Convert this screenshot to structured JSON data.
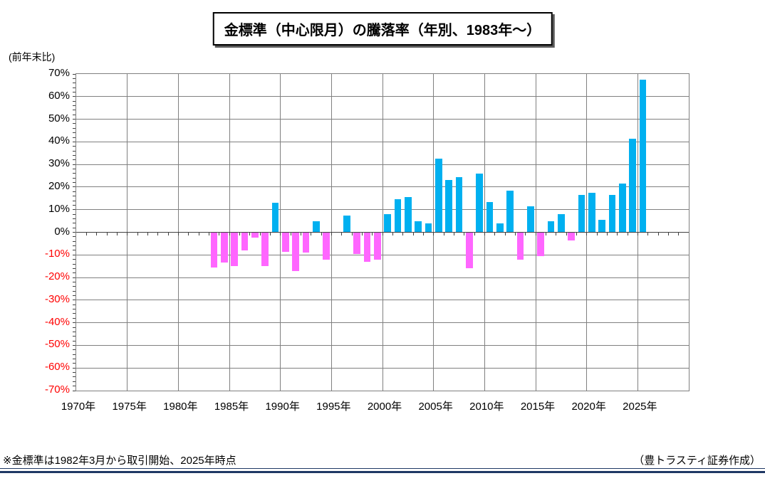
{
  "title": "金標準（中心限月）の騰落率（年別、1983年〜）",
  "axis_unit": "(前年末比)",
  "footnote": "※金標準は1982年3月から取引開始、2025年時点",
  "credit": "（豊トラスティ証券作成）",
  "colors": {
    "positive_bar": "#00B0F0",
    "negative_bar": "#FF66FF",
    "negative_tick_label": "#FF0000",
    "positive_tick_label": "#000000",
    "gridline": "#808080",
    "axis": "#404040",
    "rule": "#1F3864"
  },
  "chart_data": {
    "type": "bar",
    "title": "金標準（中心限月）の騰落率（年別、1983年〜）",
    "ylabel": "(前年末比)",
    "y_range": [
      -70,
      70
    ],
    "x_range": [
      1970,
      2030
    ],
    "grid": true,
    "y_ticks": [
      {
        "label": "70%",
        "value": 70
      },
      {
        "label": "60%",
        "value": 60
      },
      {
        "label": "50%",
        "value": 50
      },
      {
        "label": "40%",
        "value": 40
      },
      {
        "label": "30%",
        "value": 30
      },
      {
        "label": "20%",
        "value": 20
      },
      {
        "label": "10%",
        "value": 10
      },
      {
        "label": "0%",
        "value": 0
      },
      {
        "label": "-10%",
        "value": -10
      },
      {
        "label": "-20%",
        "value": -20
      },
      {
        "label": "-30%",
        "value": -30
      },
      {
        "label": "-40%",
        "value": -40
      },
      {
        "label": "-50%",
        "value": -50
      },
      {
        "label": "-60%",
        "value": -60
      },
      {
        "label": "-70%",
        "value": -70
      }
    ],
    "x_ticks": [
      {
        "label": "1970年",
        "year": 1970
      },
      {
        "label": "1975年",
        "year": 1975
      },
      {
        "label": "1980年",
        "year": 1980
      },
      {
        "label": "1985年",
        "year": 1985
      },
      {
        "label": "1990年",
        "year": 1990
      },
      {
        "label": "1995年",
        "year": 1995
      },
      {
        "label": "2000年",
        "year": 2000
      },
      {
        "label": "2005年",
        "year": 2005
      },
      {
        "label": "2010年",
        "year": 2010
      },
      {
        "label": "2015年",
        "year": 2015
      },
      {
        "label": "2020年",
        "year": 2020
      },
      {
        "label": "2025年",
        "year": 2025
      }
    ],
    "years": [
      1983,
      1984,
      1985,
      1986,
      1987,
      1988,
      1989,
      1990,
      1991,
      1992,
      1993,
      1994,
      1995,
      1996,
      1997,
      1998,
      1999,
      2000,
      2001,
      2002,
      2003,
      2004,
      2005,
      2006,
      2007,
      2008,
      2009,
      2010,
      2011,
      2012,
      2013,
      2014,
      2015,
      2016,
      2017,
      2018,
      2019,
      2020,
      2021,
      2022,
      2023,
      2024,
      2025
    ],
    "values": [
      -15.5,
      -13.5,
      -15,
      -8,
      -2.5,
      -15,
      13,
      -8.5,
      -17,
      -9,
      5,
      -12,
      0,
      7.5,
      -9.5,
      -13,
      -12,
      8,
      14.5,
      15.5,
      5,
      4,
      32.5,
      23,
      24.5,
      -16,
      26,
      13.5,
      4,
      18.5,
      -12,
      11.5,
      -10.5,
      5,
      8,
      -3.5,
      16.5,
      17.5,
      5.5,
      16.5,
      21.5,
      41.5,
      67.5
    ]
  }
}
